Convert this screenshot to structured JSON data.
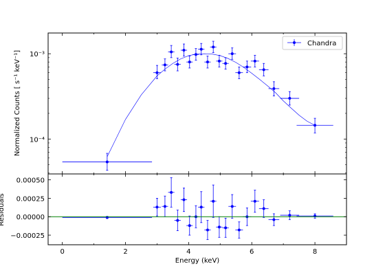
{
  "chart_data": [
    {
      "type": "scatter",
      "panel": "top",
      "title": "",
      "xlabel": "",
      "ylabel": "Normalized Counts [ s⁻¹ keV⁻¹]",
      "yscale": "log",
      "xlim": [
        -0.45,
        9.0
      ],
      "ylim": [
        3.9e-05,
        0.00175
      ],
      "yticks": [
        {
          "value": 0.0001,
          "label": "10⁻⁴"
        },
        {
          "value": 0.001,
          "label": "10⁻³"
        }
      ],
      "legend": {
        "position": "top-right",
        "entries": [
          "Chandra"
        ]
      },
      "colors": {
        "data": "#0000ff",
        "model": "#0000ff"
      },
      "series": [
        {
          "name": "Chandra",
          "style": "points-with-errorbars",
          "points": [
            {
              "x": 1.42,
              "xerr": 1.42,
              "y": 5.4e-05,
              "ylo": 4.3e-05,
              "yhi": 6.8e-05
            },
            {
              "x": 3.0,
              "xerr": 0.12,
              "y": 0.0006,
              "ylo": 0.00051,
              "yhi": 0.00073
            },
            {
              "x": 3.25,
              "xerr": 0.1,
              "y": 0.00074,
              "ylo": 0.00063,
              "yhi": 0.00087
            },
            {
              "x": 3.45,
              "xerr": 0.1,
              "y": 0.00105,
              "ylo": 0.0009,
              "yhi": 0.00125
            },
            {
              "x": 3.65,
              "xerr": 0.1,
              "y": 0.00075,
              "ylo": 0.00063,
              "yhi": 0.00089
            },
            {
              "x": 3.85,
              "xerr": 0.1,
              "y": 0.0011,
              "ylo": 0.00094,
              "yhi": 0.0013
            },
            {
              "x": 4.03,
              "xerr": 0.1,
              "y": 0.0008,
              "ylo": 0.00068,
              "yhi": 0.00094
            },
            {
              "x": 4.23,
              "xerr": 0.1,
              "y": 0.00098,
              "ylo": 0.00084,
              "yhi": 0.00115
            },
            {
              "x": 4.4,
              "xerr": 0.1,
              "y": 0.00113,
              "ylo": 0.00097,
              "yhi": 0.00132
            },
            {
              "x": 4.6,
              "xerr": 0.1,
              "y": 0.0008,
              "ylo": 0.00068,
              "yhi": 0.00094
            },
            {
              "x": 4.78,
              "xerr": 0.1,
              "y": 0.0012,
              "ylo": 0.00103,
              "yhi": 0.0014
            },
            {
              "x": 4.97,
              "xerr": 0.1,
              "y": 0.00082,
              "ylo": 0.0007,
              "yhi": 0.00096
            },
            {
              "x": 5.17,
              "xerr": 0.1,
              "y": 0.00077,
              "ylo": 0.00066,
              "yhi": 0.0009
            },
            {
              "x": 5.38,
              "xerr": 0.12,
              "y": 0.001,
              "ylo": 0.00086,
              "yhi": 0.00117
            },
            {
              "x": 5.6,
              "xerr": 0.12,
              "y": 0.0006,
              "ylo": 0.00051,
              "yhi": 0.0007
            },
            {
              "x": 5.85,
              "xerr": 0.13,
              "y": 0.0007,
              "ylo": 0.0006,
              "yhi": 0.00082
            },
            {
              "x": 6.1,
              "xerr": 0.13,
              "y": 0.00082,
              "ylo": 0.0007,
              "yhi": 0.00096
            },
            {
              "x": 6.38,
              "xerr": 0.15,
              "y": 0.00065,
              "ylo": 0.00055,
              "yhi": 0.00077
            },
            {
              "x": 6.7,
              "xerr": 0.17,
              "y": 0.00039,
              "ylo": 0.00032,
              "yhi": 0.00047
            },
            {
              "x": 7.2,
              "xerr": 0.3,
              "y": 0.0003,
              "ylo": 0.00025,
              "yhi": 0.00036
            },
            {
              "x": 8.0,
              "xerr": 0.58,
              "y": 0.000145,
              "ylo": 0.000118,
              "yhi": 0.000175
            }
          ]
        },
        {
          "name": "",
          "style": "line",
          "x": [
            1.42,
            2.0,
            2.5,
            3.0,
            3.25,
            3.5,
            3.75,
            4.0,
            4.25,
            4.5,
            4.75,
            5.0,
            5.25,
            5.5,
            5.75,
            6.0,
            6.25,
            6.5,
            6.75,
            7.0,
            7.25,
            7.5,
            7.75,
            8.0
          ],
          "y": [
            6.2e-05,
            0.00017,
            0.00033,
            0.00055,
            0.00066,
            0.00077,
            0.00087,
            0.00095,
            0.00099,
            0.001,
            0.00099,
            0.00095,
            0.00088,
            0.00079,
            0.00069,
            0.00059,
            0.0005,
            0.00042,
            0.00035,
            0.00028,
            0.00023,
            0.00019,
            0.000162,
            0.000145
          ]
        }
      ]
    },
    {
      "type": "scatter",
      "panel": "bottom",
      "title": "",
      "xlabel": "Energy (keV)",
      "ylabel": "Residuals",
      "xlim": [
        -0.45,
        9.0
      ],
      "ylim": [
        -0.00038,
        0.00058
      ],
      "xticks": [
        {
          "value": 0,
          "label": "0"
        },
        {
          "value": 2,
          "label": "2"
        },
        {
          "value": 4,
          "label": "4"
        },
        {
          "value": 6,
          "label": "6"
        },
        {
          "value": 8,
          "label": "8"
        }
      ],
      "yticks": [
        {
          "value": 0.0005,
          "label": "0.00050"
        },
        {
          "value": 0.00025,
          "label": "0.00025"
        },
        {
          "value": 0.0,
          "label": "0.00000"
        },
        {
          "value": -0.00025,
          "label": "−0.00025"
        }
      ],
      "colors": {
        "data": "#0000ff",
        "zero_line": "#008000"
      },
      "reference_line": {
        "y": 0.0
      },
      "series": [
        {
          "name": "",
          "style": "points-with-errorbars",
          "points": [
            {
              "x": 1.42,
              "xerr": 1.42,
              "y": -1e-05,
              "yerr": 1.5e-05
            },
            {
              "x": 3.0,
              "xerr": 0.12,
              "y": 0.00013,
              "yerr": 0.00012
            },
            {
              "x": 3.25,
              "xerr": 0.1,
              "y": 0.00014,
              "yerr": 0.00014
            },
            {
              "x": 3.45,
              "xerr": 0.1,
              "y": 0.00033,
              "yerr": 0.0002
            },
            {
              "x": 3.65,
              "xerr": 0.1,
              "y": -5e-05,
              "yerr": 0.00014
            },
            {
              "x": 3.85,
              "xerr": 0.1,
              "y": 0.00023,
              "yerr": 0.00016
            },
            {
              "x": 4.03,
              "xerr": 0.1,
              "y": -0.00012,
              "yerr": 0.00013
            },
            {
              "x": 4.23,
              "xerr": 0.1,
              "y": 0.0,
              "yerr": 0.00015
            },
            {
              "x": 4.4,
              "xerr": 0.1,
              "y": 0.00013,
              "yerr": 0.00021
            },
            {
              "x": 4.6,
              "xerr": 0.1,
              "y": -0.00018,
              "yerr": 0.00013
            },
            {
              "x": 4.78,
              "xerr": 0.1,
              "y": 0.00021,
              "yerr": 0.00022
            },
            {
              "x": 4.97,
              "xerr": 0.1,
              "y": -0.00014,
              "yerr": 0.00014
            },
            {
              "x": 5.17,
              "xerr": 0.1,
              "y": -0.00015,
              "yerr": 0.00013
            },
            {
              "x": 5.38,
              "xerr": 0.12,
              "y": 0.00014,
              "yerr": 0.00016
            },
            {
              "x": 5.6,
              "xerr": 0.12,
              "y": -0.00018,
              "yerr": 0.00011
            },
            {
              "x": 5.85,
              "xerr": 0.13,
              "y": 0.0,
              "yerr": 0.00012
            },
            {
              "x": 6.1,
              "xerr": 0.13,
              "y": 0.00021,
              "yerr": 0.00015
            },
            {
              "x": 6.38,
              "xerr": 0.15,
              "y": 0.00011,
              "yerr": 0.00012
            },
            {
              "x": 6.7,
              "xerr": 0.17,
              "y": -4e-05,
              "yerr": 8e-05
            },
            {
              "x": 7.2,
              "xerr": 0.3,
              "y": 2e-05,
              "yerr": 6e-05
            },
            {
              "x": 8.0,
              "xerr": 0.58,
              "y": 1e-05,
              "yerr": 3e-05
            }
          ]
        }
      ]
    }
  ]
}
